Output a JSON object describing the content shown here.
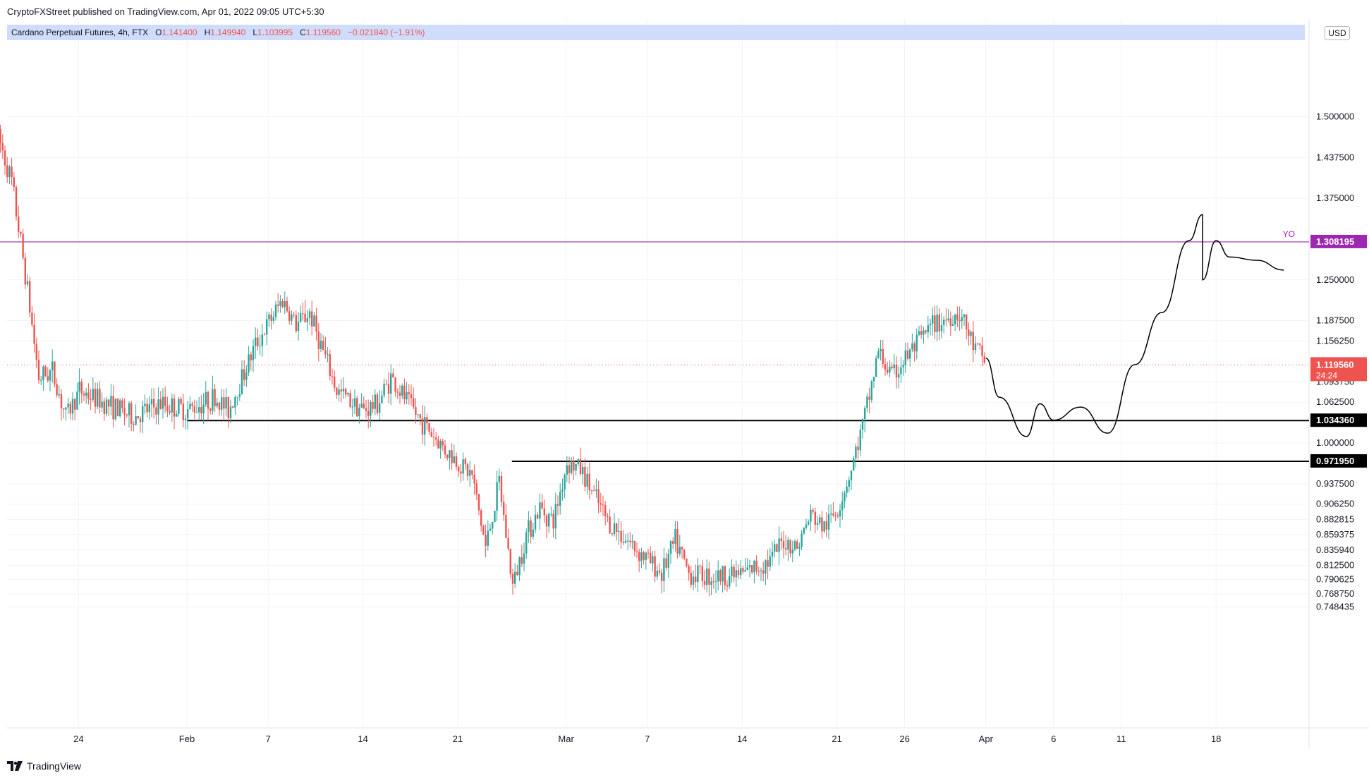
{
  "header": {
    "published": "CryptoFXStreet published on TradingView.com, Apr 01, 2022 09:05 UTC+5:30"
  },
  "symbol": {
    "name": "Cardano Perpetual Futures, 4h, FTX",
    "open_label": "O",
    "open": "1.141400",
    "high_label": "H",
    "high": "1.149940",
    "low_label": "L",
    "low": "1.103995",
    "close_label": "C",
    "close": "1.119560",
    "change": "−0.021840 (−1.91%)"
  },
  "currency": "USD",
  "footer": {
    "brand": "TradingView"
  },
  "chart_data": {
    "type": "candlestick",
    "title": "",
    "xlabel": "",
    "ylabel": "",
    "ylim": [
      0.73,
      1.53
    ],
    "grid": true,
    "x_ticks": [
      "24",
      "Feb",
      "7",
      "14",
      "21",
      "Mar",
      "7",
      "14",
      "21",
      "26",
      "Apr",
      "6",
      "11",
      "18"
    ],
    "x_tick_dates": [
      "2022-01-24",
      "2022-02-01",
      "2022-02-07",
      "2022-02-14",
      "2022-02-21",
      "2022-03-01",
      "2022-03-07",
      "2022-03-14",
      "2022-03-21",
      "2022-03-26",
      "2022-04-01",
      "2022-04-06",
      "2022-04-11",
      "2022-04-18"
    ],
    "y_ticks": [
      {
        "value": 1.5,
        "label": "1.500000"
      },
      {
        "value": 1.4375,
        "label": "1.437500"
      },
      {
        "value": 1.375,
        "label": "1.375000"
      },
      {
        "value": 1.25,
        "label": "1.250000"
      },
      {
        "value": 1.1875,
        "label": "1.187500"
      },
      {
        "value": 1.15625,
        "label": "1.156250"
      },
      {
        "value": 1.09375,
        "label": "1.093750"
      },
      {
        "value": 1.0625,
        "label": "1.062500"
      },
      {
        "value": 1.0,
        "label": "1.000000"
      },
      {
        "value": 0.9375,
        "label": "0.937500"
      },
      {
        "value": 0.90625,
        "label": "0.906250"
      },
      {
        "value": 0.882815,
        "label": "0.882815"
      },
      {
        "value": 0.859375,
        "label": "0.859375"
      },
      {
        "value": 0.83594,
        "label": "0.835940"
      },
      {
        "value": 0.8125,
        "label": "0.812500"
      },
      {
        "value": 0.790625,
        "label": "0.790625"
      },
      {
        "value": 0.76875,
        "label": "0.768750"
      },
      {
        "value": 0.748435,
        "label": "0.748435"
      }
    ],
    "levels": [
      {
        "value": 1.308195,
        "label": "1.308195",
        "tag": "YO",
        "color": "#9c27b0",
        "from_date": "2022-01-18"
      },
      {
        "value": 1.03436,
        "label": "1.034360",
        "color": "#000000",
        "from_date": "2022-02-01"
      },
      {
        "value": 0.97195,
        "label": "0.971950",
        "color": "#000000",
        "from_date": "2022-02-25"
      }
    ],
    "last_price": {
      "value": 1.11956,
      "label": "1.119560",
      "countdown": "24:24",
      "color": "#ef5350"
    },
    "up_color": "#26a69a",
    "down_color": "#ef5350",
    "anchors": [
      {
        "date": "2022-01-18",
        "price": 1.47
      },
      {
        "date": "2022-01-19",
        "price": 1.4
      },
      {
        "date": "2022-01-20",
        "price": 1.26
      },
      {
        "date": "2022-01-21",
        "price": 1.1
      },
      {
        "date": "2022-01-22",
        "price": 1.11
      },
      {
        "date": "2022-01-23",
        "price": 1.04
      },
      {
        "date": "2022-01-24",
        "price": 1.08
      },
      {
        "date": "2022-01-26",
        "price": 1.06
      },
      {
        "date": "2022-01-28",
        "price": 1.04
      },
      {
        "date": "2022-01-30",
        "price": 1.06
      },
      {
        "date": "2022-02-01",
        "price": 1.05
      },
      {
        "date": "2022-02-03",
        "price": 1.07
      },
      {
        "date": "2022-02-04",
        "price": 1.05
      },
      {
        "date": "2022-02-06",
        "price": 1.15
      },
      {
        "date": "2022-02-08",
        "price": 1.22
      },
      {
        "date": "2022-02-09",
        "price": 1.18
      },
      {
        "date": "2022-02-10",
        "price": 1.2
      },
      {
        "date": "2022-02-12",
        "price": 1.08
      },
      {
        "date": "2022-02-14",
        "price": 1.05
      },
      {
        "date": "2022-02-15",
        "price": 1.06
      },
      {
        "date": "2022-02-16",
        "price": 1.1
      },
      {
        "date": "2022-02-18",
        "price": 1.04
      },
      {
        "date": "2022-02-20",
        "price": 0.99
      },
      {
        "date": "2022-02-22",
        "price": 0.95
      },
      {
        "date": "2022-02-23",
        "price": 0.84
      },
      {
        "date": "2022-02-24",
        "price": 0.94
      },
      {
        "date": "2022-02-25",
        "price": 0.78
      },
      {
        "date": "2022-02-26",
        "price": 0.86
      },
      {
        "date": "2022-02-27",
        "price": 0.9
      },
      {
        "date": "2022-02-28",
        "price": 0.88
      },
      {
        "date": "2022-03-01",
        "price": 0.97
      },
      {
        "date": "2022-03-02",
        "price": 0.96
      },
      {
        "date": "2022-03-04",
        "price": 0.88
      },
      {
        "date": "2022-03-06",
        "price": 0.84
      },
      {
        "date": "2022-03-08",
        "price": 0.8
      },
      {
        "date": "2022-03-09",
        "price": 0.85
      },
      {
        "date": "2022-03-10",
        "price": 0.8
      },
      {
        "date": "2022-03-12",
        "price": 0.795
      },
      {
        "date": "2022-03-14",
        "price": 0.8
      },
      {
        "date": "2022-03-16",
        "price": 0.82
      },
      {
        "date": "2022-03-17",
        "price": 0.85
      },
      {
        "date": "2022-03-18",
        "price": 0.84
      },
      {
        "date": "2022-03-19",
        "price": 0.89
      },
      {
        "date": "2022-03-20",
        "price": 0.87
      },
      {
        "date": "2022-03-21",
        "price": 0.9
      },
      {
        "date": "2022-03-22",
        "price": 0.96
      },
      {
        "date": "2022-03-23",
        "price": 1.04
      },
      {
        "date": "2022-03-24",
        "price": 1.14
      },
      {
        "date": "2022-03-25",
        "price": 1.1
      },
      {
        "date": "2022-03-26",
        "price": 1.13
      },
      {
        "date": "2022-03-28",
        "price": 1.18
      },
      {
        "date": "2022-03-29",
        "price": 1.19
      },
      {
        "date": "2022-03-30",
        "price": 1.2
      },
      {
        "date": "2022-03-31",
        "price": 1.15
      },
      {
        "date": "2022-04-01",
        "price": 1.12
      }
    ],
    "projection": [
      {
        "date": "2022-04-01",
        "price": 1.13
      },
      {
        "date": "2022-04-02",
        "price": 1.07
      },
      {
        "date": "2022-04-04",
        "price": 1.01
      },
      {
        "date": "2022-04-05",
        "price": 1.06
      },
      {
        "date": "2022-04-06",
        "price": 1.035
      },
      {
        "date": "2022-04-08",
        "price": 1.055
      },
      {
        "date": "2022-04-10",
        "price": 1.015
      },
      {
        "date": "2022-04-12",
        "price": 1.12
      },
      {
        "date": "2022-04-14",
        "price": 1.2
      },
      {
        "date": "2022-04-16",
        "price": 1.31
      },
      {
        "date": "2022-04-17",
        "price": 1.35
      },
      {
        "date": "2022-04-17",
        "price": 1.25
      },
      {
        "date": "2022-04-18",
        "price": 1.31
      },
      {
        "date": "2022-04-19",
        "price": 1.285
      },
      {
        "date": "2022-04-21",
        "price": 1.28
      },
      {
        "date": "2022-04-23",
        "price": 1.265
      }
    ]
  }
}
